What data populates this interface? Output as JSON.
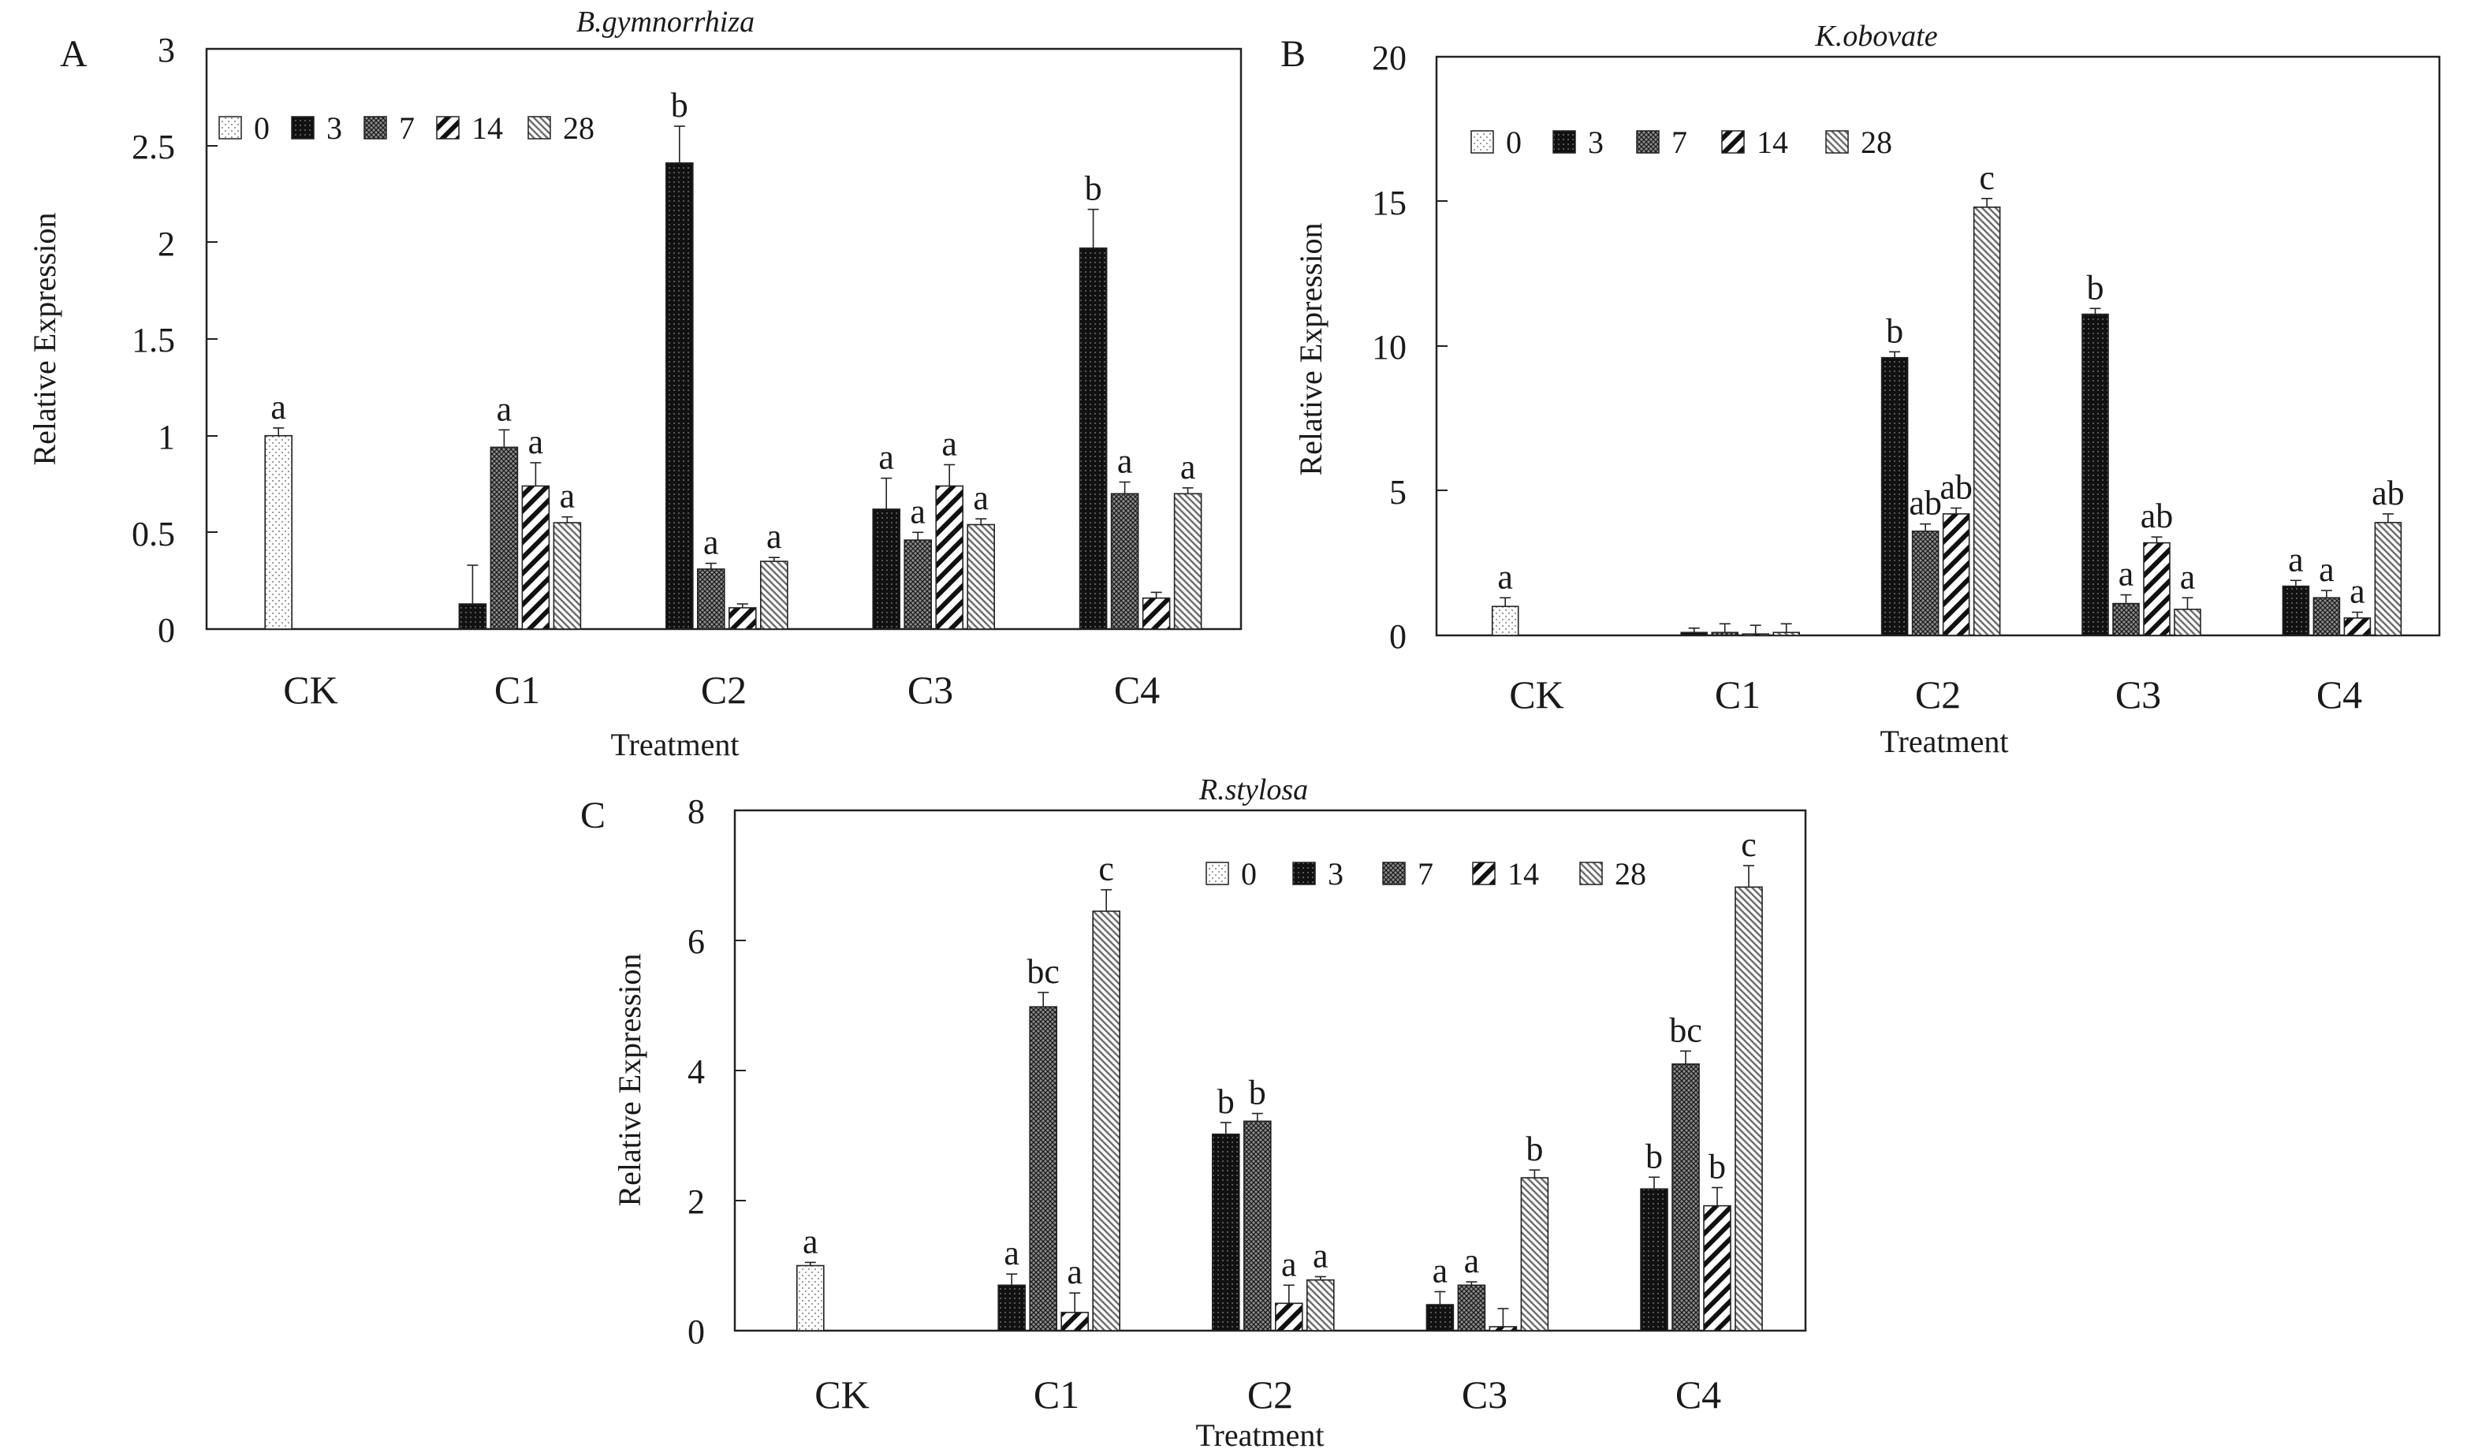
{
  "chart_data": [
    {
      "panel_label": "A",
      "type": "bar",
      "title": "B.gymnorrhiza",
      "xlabel": "Treatment",
      "ylabel": "Relative Expression",
      "ylim": [
        0,
        3
      ],
      "yticks": [
        "0",
        "0.5",
        "1",
        "1.5",
        "2",
        "2.5",
        "3"
      ],
      "categories": [
        "CK",
        "C1",
        "C2",
        "C3",
        "C4"
      ],
      "legend_position": "top-left",
      "series": [
        {
          "name": "0",
          "values": [
            1.0,
            null,
            null,
            null,
            null
          ],
          "errors": [
            0.04,
            0,
            0,
            0,
            0
          ],
          "labels": [
            "a",
            "",
            "",
            "",
            ""
          ]
        },
        {
          "name": "3",
          "values": [
            null,
            0.13,
            2.41,
            0.62,
            1.97
          ],
          "errors": [
            0,
            0.2,
            0.19,
            0.16,
            0.2
          ],
          "labels": [
            "",
            "",
            "b",
            "a",
            "b"
          ]
        },
        {
          "name": "7",
          "values": [
            null,
            0.94,
            0.31,
            0.46,
            0.7
          ],
          "errors": [
            0,
            0.09,
            0.03,
            0.04,
            0.06
          ],
          "labels": [
            "",
            "a",
            "a",
            "a",
            "a"
          ]
        },
        {
          "name": "14",
          "values": [
            null,
            0.74,
            0.11,
            0.74,
            0.16
          ],
          "errors": [
            0,
            0.12,
            0.02,
            0.11,
            0.03
          ],
          "labels": [
            "",
            "a",
            "",
            "a",
            ""
          ]
        },
        {
          "name": "28",
          "values": [
            null,
            0.55,
            0.35,
            0.54,
            0.7
          ],
          "errors": [
            0,
            0.03,
            0.02,
            0.03,
            0.03
          ],
          "labels": [
            "",
            "a",
            "a",
            "a",
            "a"
          ]
        }
      ]
    },
    {
      "panel_label": "B",
      "type": "bar",
      "title": "K.obovate",
      "xlabel": "Treatment",
      "ylabel": "Relative Expression",
      "ylim": [
        0,
        20
      ],
      "yticks": [
        "0",
        "5",
        "10",
        "15",
        "20"
      ],
      "categories": [
        "CK",
        "C1",
        "C2",
        "C3",
        "C4"
      ],
      "legend_position": "top-left",
      "series": [
        {
          "name": "0",
          "values": [
            1.0,
            null,
            null,
            null,
            null
          ],
          "errors": [
            0.3,
            0,
            0,
            0,
            0
          ],
          "labels": [
            "a",
            "",
            "",
            "",
            ""
          ]
        },
        {
          "name": "3",
          "values": [
            null,
            0.1,
            9.6,
            11.1,
            1.7
          ],
          "errors": [
            0,
            0.15,
            0.2,
            0.2,
            0.2
          ],
          "labels": [
            "",
            "",
            "b",
            "b",
            "a"
          ]
        },
        {
          "name": "7",
          "values": [
            null,
            0.1,
            3.6,
            1.1,
            1.3
          ],
          "errors": [
            0,
            0.3,
            0.25,
            0.3,
            0.25
          ],
          "labels": [
            "",
            "",
            "ab",
            "a",
            "a"
          ]
        },
        {
          "name": "14",
          "values": [
            null,
            0.05,
            4.2,
            3.2,
            0.6
          ],
          "errors": [
            0,
            0.3,
            0.2,
            0.2,
            0.2
          ],
          "labels": [
            "",
            "",
            "ab",
            "ab",
            "a"
          ]
        },
        {
          "name": "28",
          "values": [
            null,
            0.1,
            14.8,
            0.9,
            3.9
          ],
          "errors": [
            0,
            0.3,
            0.3,
            0.4,
            0.3
          ],
          "labels": [
            "",
            "",
            "c",
            "a",
            "ab"
          ]
        }
      ]
    },
    {
      "panel_label": "C",
      "type": "bar",
      "title": "R.stylosa",
      "xlabel": "Treatment",
      "ylabel": "Relative Expression",
      "ylim": [
        0,
        8
      ],
      "yticks": [
        "0",
        "2",
        "4",
        "6",
        "8"
      ],
      "categories": [
        "CK",
        "C1",
        "C2",
        "C3",
        "C4"
      ],
      "legend_position": "top-right",
      "series": [
        {
          "name": "0",
          "values": [
            1.0,
            null,
            null,
            null,
            null
          ],
          "errors": [
            0.05,
            0,
            0,
            0,
            0
          ],
          "labels": [
            "a",
            "",
            "",
            "",
            ""
          ]
        },
        {
          "name": "3",
          "values": [
            null,
            0.7,
            3.02,
            0.4,
            2.18
          ],
          "errors": [
            0,
            0.17,
            0.18,
            0.2,
            0.18
          ],
          "labels": [
            "",
            "a",
            "b",
            "a",
            "b"
          ]
        },
        {
          "name": "7",
          "values": [
            null,
            4.98,
            3.22,
            0.7,
            4.1
          ],
          "errors": [
            0,
            0.22,
            0.12,
            0.05,
            0.2
          ],
          "labels": [
            "",
            "bc",
            "b",
            "a",
            "bc"
          ]
        },
        {
          "name": "14",
          "values": [
            null,
            0.28,
            0.42,
            0.06,
            1.92
          ],
          "errors": [
            0,
            0.3,
            0.28,
            0.28,
            0.28
          ],
          "labels": [
            "",
            "a",
            "a",
            "",
            "b"
          ]
        },
        {
          "name": "28",
          "values": [
            null,
            6.45,
            0.78,
            2.35,
            6.82
          ],
          "errors": [
            0,
            0.33,
            0.05,
            0.12,
            0.33
          ],
          "labels": [
            "",
            "c",
            "a",
            "b",
            "c"
          ]
        }
      ]
    }
  ]
}
